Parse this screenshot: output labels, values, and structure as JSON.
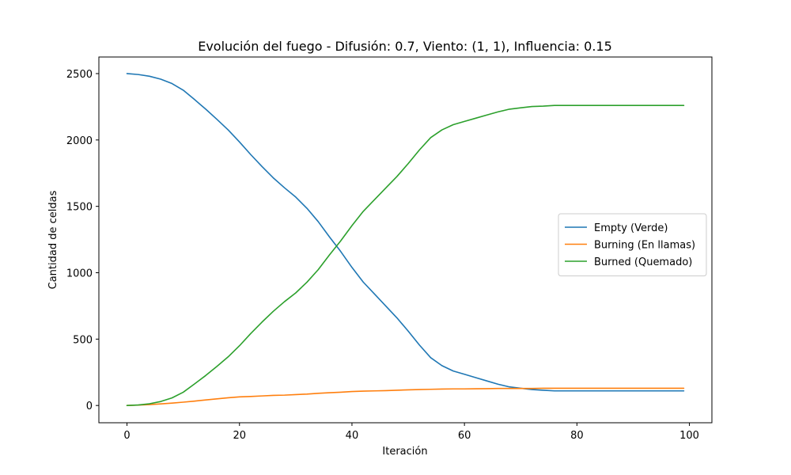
{
  "chart_data": {
    "type": "line",
    "title": "Evolución del fuego - Difusión: 0.7, Viento: (1, 1), Influencia: 0.15",
    "xlabel": "Iteración",
    "ylabel": "Cantidad de celdas",
    "xlim": [
      -5,
      104
    ],
    "ylim": [
      -130,
      2625
    ],
    "x_ticks": [
      0,
      20,
      40,
      60,
      80,
      100
    ],
    "y_ticks": [
      0,
      500,
      1000,
      1500,
      2000,
      2500
    ],
    "grid": false,
    "legend_position": "center-right",
    "x": [
      0,
      2,
      4,
      6,
      8,
      10,
      12,
      14,
      16,
      18,
      20,
      22,
      24,
      26,
      28,
      30,
      32,
      34,
      36,
      38,
      40,
      42,
      44,
      46,
      48,
      50,
      52,
      54,
      56,
      58,
      60,
      62,
      64,
      66,
      68,
      70,
      72,
      74,
      76,
      78,
      80,
      85,
      90,
      95,
      99
    ],
    "series": [
      {
        "name": "Empty (Verde)",
        "color": "#1f77b4",
        "values": [
          2500,
          2493,
          2480,
          2458,
          2425,
          2375,
          2305,
          2232,
          2155,
          2075,
          1985,
          1890,
          1800,
          1715,
          1640,
          1570,
          1485,
          1385,
          1270,
          1160,
          1040,
          930,
          840,
          750,
          660,
          560,
          455,
          360,
          300,
          260,
          235,
          210,
          185,
          160,
          140,
          130,
          120,
          115,
          110,
          110,
          110,
          110,
          110,
          110,
          110
        ]
      },
      {
        "name": "Burning (En llamas)",
        "color": "#ff7f0e",
        "values": [
          0,
          3,
          7,
          12,
          18,
          25,
          33,
          42,
          50,
          58,
          65,
          68,
          72,
          76,
          78,
          82,
          86,
          92,
          96,
          100,
          105,
          108,
          110,
          112,
          115,
          118,
          120,
          122,
          124,
          125,
          125,
          126,
          127,
          128,
          128,
          128,
          128,
          130,
          130,
          130,
          130,
          130,
          130,
          130,
          130
        ]
      },
      {
        "name": "Burned (Quemado)",
        "color": "#2ca02c",
        "values": [
          0,
          4,
          13,
          30,
          57,
          100,
          162,
          226,
          295,
          367,
          450,
          542,
          628,
          709,
          782,
          848,
          929,
          1023,
          1134,
          1240,
          1355,
          1462,
          1550,
          1638,
          1725,
          1822,
          1925,
          2018,
          2076,
          2115,
          2140,
          2164,
          2188,
          2212,
          2232,
          2242,
          2252,
          2255,
          2260,
          2260,
          2260,
          2260,
          2260,
          2260,
          2260
        ]
      }
    ]
  }
}
